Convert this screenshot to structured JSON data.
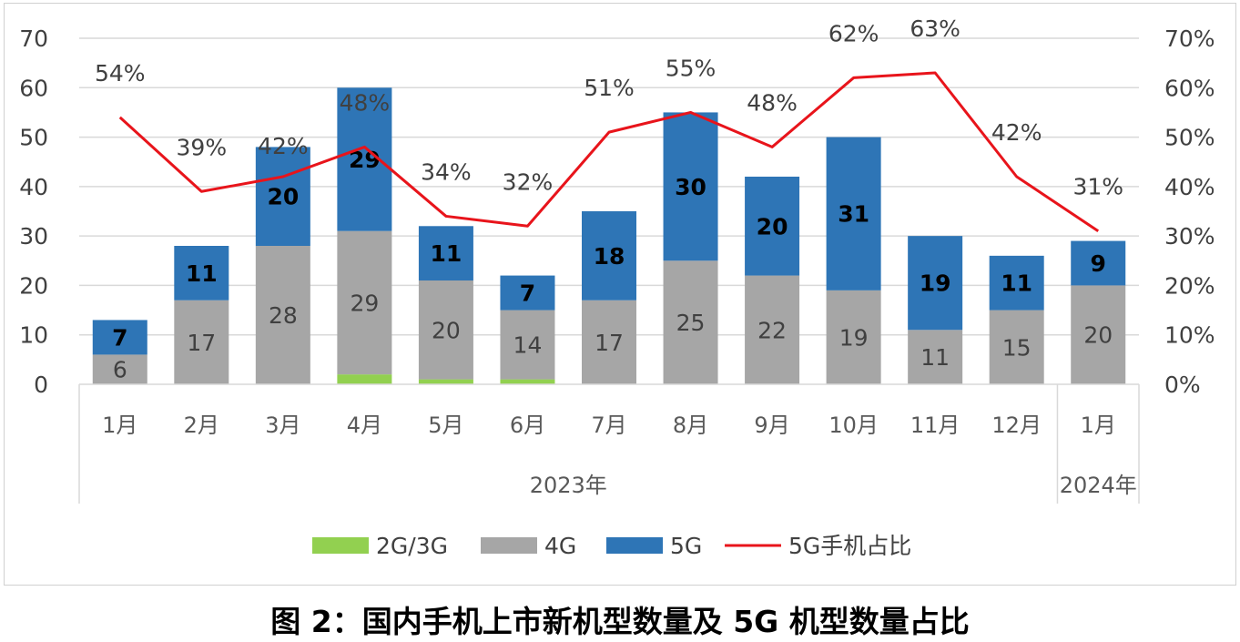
{
  "caption": "图 2：国内手机上市新机型数量及 5G 机型数量占比",
  "chart_data": {
    "type": "bar",
    "stacked": true,
    "categories": [
      "1月",
      "2月",
      "3月",
      "4月",
      "5月",
      "6月",
      "7月",
      "8月",
      "9月",
      "10月",
      "11月",
      "12月",
      "1月"
    ],
    "category_groups": [
      {
        "label": "2023年",
        "span": 12
      },
      {
        "label": "2024年",
        "span": 1
      }
    ],
    "series": [
      {
        "name": "2G/3G",
        "type": "bar",
        "color": "#92d050",
        "values": [
          0,
          0,
          0,
          2,
          1,
          1,
          0,
          0,
          0,
          0,
          0,
          0,
          0
        ]
      },
      {
        "name": "4G",
        "type": "bar",
        "color": "#a6a6a6",
        "values": [
          6,
          17,
          28,
          29,
          20,
          14,
          17,
          25,
          22,
          19,
          11,
          15,
          20
        ]
      },
      {
        "name": "5G",
        "type": "bar",
        "color": "#2e75b6",
        "values": [
          7,
          11,
          20,
          29,
          11,
          7,
          18,
          30,
          20,
          31,
          19,
          11,
          9
        ]
      },
      {
        "name": "5G手机占比",
        "type": "line",
        "axis": "right",
        "color": "#e8141b",
        "values": [
          54,
          39,
          42,
          48,
          34,
          32,
          51,
          55,
          48,
          62,
          63,
          42,
          31
        ],
        "labels": [
          "54%",
          "39%",
          "42%",
          "48%",
          "34%",
          "32%",
          "51%",
          "55%",
          "48%",
          "62%",
          "63%",
          "42%",
          "31%"
        ]
      }
    ],
    "y_left": {
      "ylim": [
        0,
        70
      ],
      "ticks": [
        "0",
        "10",
        "20",
        "30",
        "40",
        "50",
        "60",
        "70"
      ]
    },
    "y_right": {
      "ylim": [
        0,
        70
      ],
      "ticks": [
        "0%",
        "10%",
        "20%",
        "30%",
        "40%",
        "50%",
        "60%",
        "70%"
      ]
    },
    "grid": true,
    "legend_position": "bottom",
    "legend": [
      "2G/3G",
      "4G",
      "5G",
      "5G手机占比"
    ]
  }
}
